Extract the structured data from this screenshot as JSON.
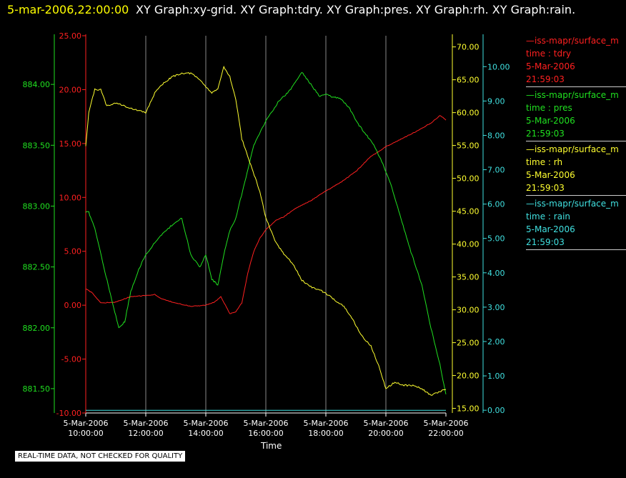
{
  "header": {
    "timestamp": "5-mar-2006,22:00:00",
    "titles": "XY Graph:xy-grid.  XY Graph:tdry.  XY Graph:pres.  XY Graph:rh.  XY Graph:rain."
  },
  "notice": "REAL-TIME DATA, NOT CHECKED FOR QUALITY",
  "legend": [
    {
      "line": "—iss-mapr/surface_m",
      "field": "time : tdry",
      "date": "5-Mar-2006",
      "time": "21:59:03",
      "color": "#ff2020"
    },
    {
      "line": "—iss-mapr/surface_m",
      "field": "time : pres",
      "date": "5-Mar-2006",
      "time": "21:59:03",
      "color": "#20e020"
    },
    {
      "line": "—iss-mapr/surface_m",
      "field": "time : rh",
      "date": "5-Mar-2006",
      "time": "21:59:03",
      "color": "#ffff30"
    },
    {
      "line": "—iss-mapr/surface_m",
      "field": "time : rain",
      "date": "5-Mar-2006",
      "time": "21:59:03",
      "color": "#40e0e0"
    }
  ],
  "chart_data": {
    "type": "line",
    "xlabel": "Time",
    "x_ticks": [
      {
        "date": "5-Mar-2006",
        "time": "10:00:00",
        "hour": 10
      },
      {
        "date": "5-Mar-2006",
        "time": "12:00:00",
        "hour": 12
      },
      {
        "date": "5-Mar-2006",
        "time": "14:00:00",
        "hour": 14
      },
      {
        "date": "5-Mar-2006",
        "time": "16:00:00",
        "hour": 16
      },
      {
        "date": "5-Mar-2006",
        "time": "18:00:00",
        "hour": 18
      },
      {
        "date": "5-Mar-2006",
        "time": "20:00:00",
        "hour": 20
      },
      {
        "date": "5-Mar-2006",
        "time": "22:00:00",
        "hour": 22
      }
    ],
    "xlim": [
      10,
      22
    ],
    "grid": "vertical",
    "axes": {
      "pres": {
        "color": "#20e020",
        "ylim": [
          881.3,
          884.4
        ],
        "ticks": [
          "881.50",
          "882.00",
          "882.50",
          "883.00",
          "883.50",
          "884.00"
        ],
        "tick_values": [
          881.5,
          882.0,
          882.5,
          883.0,
          883.5,
          884.0
        ]
      },
      "tdry": {
        "color": "#ff2020",
        "ylim": [
          -10,
          25
        ],
        "ticks": [
          "-10.00",
          "-5.00",
          "0.00",
          "5.00",
          "10.00",
          "15.00",
          "20.00",
          "25.00"
        ],
        "tick_values": [
          -10,
          -5,
          0,
          5,
          10,
          15,
          20,
          25
        ]
      },
      "rh": {
        "color": "#ffff30",
        "ylim": [
          14.3,
          71.7
        ],
        "ticks": [
          "15.00",
          "20.00",
          "25.00",
          "30.00",
          "35.00",
          "40.00",
          "45.00",
          "50.00",
          "55.00",
          "60.00",
          "65.00",
          "70.00"
        ],
        "tick_values": [
          15,
          20,
          25,
          30,
          35,
          40,
          45,
          50,
          55,
          60,
          65,
          70
        ]
      },
      "rain": {
        "color": "#40e0e0",
        "ylim": [
          -0.08,
          10.9
        ],
        "ticks": [
          "0.00",
          "1.00",
          "2.00",
          "3.00",
          "4.00",
          "5.00",
          "6.00",
          "7.00",
          "8.00",
          "9.00",
          "10.00"
        ],
        "tick_values": [
          0,
          1,
          2,
          3,
          4,
          5,
          6,
          7,
          8,
          9,
          10
        ]
      }
    },
    "series": [
      {
        "name": "tdry",
        "axis": "tdry",
        "x": [
          10,
          10.2,
          10.5,
          11,
          11.5,
          12,
          12.3,
          12.5,
          13,
          13.5,
          14,
          14.3,
          14.5,
          14.8,
          15,
          15.2,
          15.4,
          15.6,
          15.8,
          16,
          16.3,
          16.6,
          17,
          17.5,
          18,
          18.5,
          19,
          19.5,
          20,
          20.5,
          21,
          21.5,
          21.8,
          22
        ],
        "values": [
          1.5,
          1.2,
          0.2,
          0.3,
          0.8,
          0.9,
          1.0,
          0.6,
          0.2,
          -0.1,
          0,
          0.3,
          0.8,
          -0.8,
          -0.6,
          0.2,
          3.0,
          5.0,
          6.2,
          7.0,
          7.8,
          8.2,
          9.0,
          9.7,
          10.6,
          11.4,
          12.4,
          13.8,
          14.7,
          15.4,
          16.1,
          16.9,
          17.6,
          17.2
        ]
      },
      {
        "name": "pres",
        "axis": "pres",
        "x": [
          10,
          10.1,
          10.3,
          10.6,
          10.9,
          11.1,
          11.3,
          11.5,
          11.8,
          12,
          12.3,
          12.6,
          12.9,
          13.2,
          13.5,
          13.8,
          14,
          14.2,
          14.4,
          14.6,
          14.8,
          15,
          15.3,
          15.6,
          16,
          16.4,
          16.8,
          17.2,
          17.5,
          17.8,
          18,
          18.2,
          18.5,
          18.8,
          19,
          19.3,
          19.6,
          19.9,
          20.2,
          20.5,
          20.8,
          21.2,
          21.5,
          21.8,
          22
        ],
        "values": [
          882.95,
          882.95,
          882.82,
          882.5,
          882.2,
          882.0,
          882.05,
          882.3,
          882.5,
          882.6,
          882.7,
          882.78,
          882.85,
          882.9,
          882.6,
          882.5,
          882.6,
          882.4,
          882.35,
          882.6,
          882.8,
          882.9,
          883.2,
          883.5,
          883.7,
          883.85,
          883.95,
          884.1,
          884.0,
          883.9,
          883.92,
          883.9,
          883.88,
          883.8,
          883.7,
          883.6,
          883.5,
          883.35,
          883.15,
          882.9,
          882.65,
          882.35,
          882.0,
          881.7,
          881.45
        ]
      },
      {
        "name": "rh",
        "axis": "rh",
        "x": [
          10,
          10.1,
          10.3,
          10.5,
          10.7,
          11,
          11.3,
          11.6,
          12,
          12.3,
          12.6,
          12.9,
          13.2,
          13.5,
          13.8,
          14,
          14.2,
          14.4,
          14.6,
          14.8,
          15,
          15.2,
          15.5,
          15.8,
          16,
          16.3,
          16.6,
          16.9,
          17.2,
          17.5,
          17.8,
          18,
          18.3,
          18.6,
          18.9,
          19.2,
          19.5,
          19.8,
          20,
          20.3,
          20.6,
          20.9,
          21.2,
          21.5,
          21.8,
          22
        ],
        "values": [
          55,
          60,
          63.5,
          63.5,
          61,
          61.5,
          61,
          60.5,
          60,
          63,
          64.5,
          65.5,
          66,
          66,
          65,
          64,
          63,
          63.5,
          67,
          65.5,
          62,
          56,
          52,
          48,
          44,
          40.5,
          38.5,
          37,
          34.5,
          33.5,
          33,
          32.5,
          31.5,
          30.5,
          28.5,
          26,
          24.5,
          21,
          18,
          19,
          18.5,
          18.5,
          18,
          17,
          17.5,
          18
        ]
      },
      {
        "name": "rain",
        "axis": "rain",
        "x": [
          10,
          22
        ],
        "values": [
          0,
          0
        ]
      }
    ]
  }
}
